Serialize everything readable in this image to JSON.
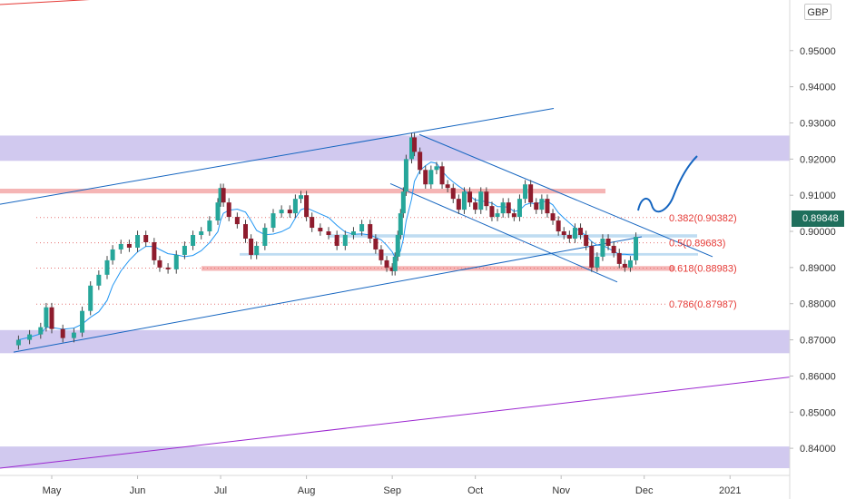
{
  "chart_data": {
    "type": "candlestick",
    "currency": "GBP",
    "last_price": "0.89848",
    "y_ticks": [
      "0.95000",
      "0.94000",
      "0.93000",
      "0.92000",
      "0.91000",
      "0.90000",
      "0.89000",
      "0.88000",
      "0.87000",
      "0.86000",
      "0.85000",
      "0.84000"
    ],
    "ylim": [
      0.8325,
      0.964
    ],
    "x_ticks": [
      {
        "label": "May",
        "day": 0
      },
      {
        "label": "Jun",
        "day": 31
      },
      {
        "label": "Jul",
        "day": 61
      },
      {
        "label": "Aug",
        "day": 92
      },
      {
        "label": "Sep",
        "day": 123
      },
      {
        "label": "Oct",
        "day": 153
      },
      {
        "label": "Nov",
        "day": 184
      },
      {
        "label": "Dec",
        "day": 214
      },
      {
        "label": "2021",
        "day": 245
      }
    ],
    "fib_levels": [
      {
        "label": "0.382(0.90382)",
        "value": 0.90382
      },
      {
        "label": "0.5(0.89683)",
        "value": 0.89683
      },
      {
        "label": "0.618(0.88983)",
        "value": 0.88983
      },
      {
        "label": "0.786(0.87987)",
        "value": 0.87987
      }
    ],
    "zones": [
      {
        "from": 0.9195,
        "to": 0.9265,
        "color": "#c9c0ec"
      },
      {
        "from": 0.8663,
        "to": 0.8727,
        "color": "#c9c0ec"
      },
      {
        "from": 0.8345,
        "to": 0.8405,
        "color": "#c9c0ec"
      }
    ],
    "closes": [
      [
        -12,
        0.87
      ],
      [
        -8,
        0.8715
      ],
      [
        -4,
        0.8735
      ],
      [
        -2,
        0.879
      ],
      [
        0,
        0.873
      ],
      [
        4,
        0.8705
      ],
      [
        8,
        0.872
      ],
      [
        11,
        0.878
      ],
      [
        14,
        0.885
      ],
      [
        17,
        0.888
      ],
      [
        20,
        0.892
      ],
      [
        22,
        0.895
      ],
      [
        25,
        0.8965
      ],
      [
        28,
        0.8955
      ],
      [
        31,
        0.899
      ],
      [
        34,
        0.897
      ],
      [
        37,
        0.892
      ],
      [
        39,
        0.89
      ],
      [
        42,
        0.8895
      ],
      [
        45,
        0.8935
      ],
      [
        48,
        0.896
      ],
      [
        51,
        0.899
      ],
      [
        54,
        0.9
      ],
      [
        57,
        0.903
      ],
      [
        60,
        0.908
      ],
      [
        61,
        0.912
      ],
      [
        62,
        0.908
      ],
      [
        64,
        0.904
      ],
      [
        67,
        0.902
      ],
      [
        70,
        0.898
      ],
      [
        72,
        0.8935
      ],
      [
        74,
        0.896
      ],
      [
        77,
        0.901
      ],
      [
        80,
        0.905
      ],
      [
        83,
        0.906
      ],
      [
        86,
        0.905
      ],
      [
        88,
        0.909
      ],
      [
        90,
        0.91
      ],
      [
        92,
        0.904
      ],
      [
        94,
        0.901
      ],
      [
        97,
        0.9
      ],
      [
        100,
        0.899
      ],
      [
        103,
        0.896
      ],
      [
        106,
        0.899
      ],
      [
        109,
        0.9
      ],
      [
        112,
        0.902
      ],
      [
        115,
        0.898
      ],
      [
        117,
        0.895
      ],
      [
        119,
        0.892
      ],
      [
        121,
        0.89
      ],
      [
        123,
        0.889
      ],
      [
        124,
        0.893
      ],
      [
        125,
        0.899
      ],
      [
        126,
        0.905
      ],
      [
        127,
        0.911
      ],
      [
        128,
        0.92
      ],
      [
        130,
        0.926
      ],
      [
        131,
        0.922
      ],
      [
        133,
        0.917
      ],
      [
        135,
        0.913
      ],
      [
        137,
        0.917
      ],
      [
        139,
        0.918
      ],
      [
        141,
        0.913
      ],
      [
        143,
        0.912
      ],
      [
        145,
        0.909
      ],
      [
        147,
        0.906
      ],
      [
        149,
        0.911
      ],
      [
        151,
        0.908
      ],
      [
        153,
        0.906
      ],
      [
        155,
        0.911
      ],
      [
        157,
        0.907
      ],
      [
        159,
        0.904
      ],
      [
        161,
        0.905
      ],
      [
        163,
        0.908
      ],
      [
        165,
        0.905
      ],
      [
        167,
        0.904
      ],
      [
        169,
        0.909
      ],
      [
        171,
        0.913
      ],
      [
        173,
        0.908
      ],
      [
        175,
        0.906
      ],
      [
        177,
        0.909
      ],
      [
        179,
        0.905
      ],
      [
        181,
        0.903
      ],
      [
        183,
        0.9
      ],
      [
        185,
        0.899
      ],
      [
        187,
        0.898
      ],
      [
        189,
        0.901
      ],
      [
        191,
        0.899
      ],
      [
        193,
        0.896
      ],
      [
        195,
        0.89
      ],
      [
        197,
        0.893
      ],
      [
        199,
        0.898
      ],
      [
        201,
        0.896
      ],
      [
        203,
        0.894
      ],
      [
        205,
        0.891
      ],
      [
        207,
        0.89
      ],
      [
        209,
        0.892
      ],
      [
        211,
        0.8985
      ]
    ]
  }
}
